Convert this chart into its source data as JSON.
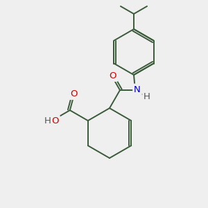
{
  "background_color": "#efefef",
  "bond_color": "#3a5a3a",
  "atom_colors": {
    "O": "#cc0000",
    "N": "#0000bb",
    "H": "#555555",
    "C": "#3a5a3a"
  },
  "font_size": 9.5,
  "figsize": [
    3.0,
    3.0
  ],
  "dpi": 100
}
